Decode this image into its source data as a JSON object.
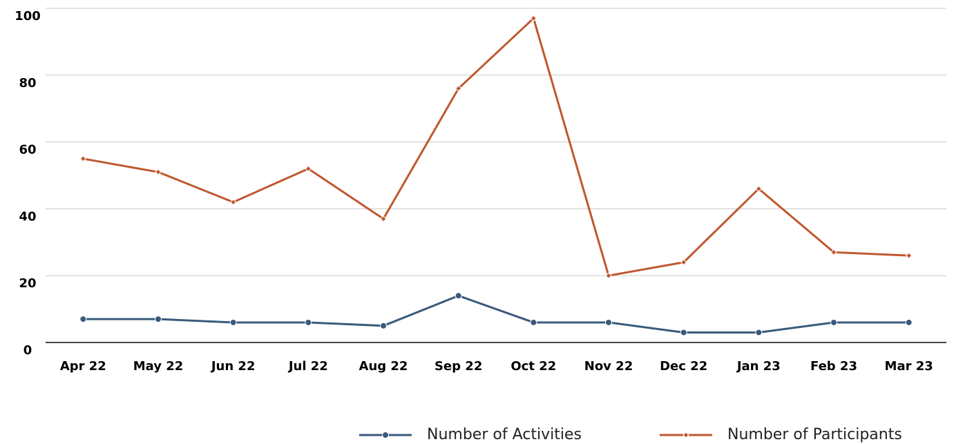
{
  "chart_data": {
    "type": "line",
    "categories": [
      "Apr 22",
      "May 22",
      "Jun 22",
      "Jul 22",
      "Aug 22",
      "Sep 22",
      "Oct 22",
      "Nov 22",
      "Dec 22",
      "Jan 23",
      "Feb 23",
      "Mar 23"
    ],
    "series": [
      {
        "name": "Number of Activities",
        "color": "#395a7b",
        "marker": "circle",
        "values": [
          7,
          7,
          6,
          6,
          5,
          14,
          6,
          6,
          3,
          3,
          6,
          6
        ]
      },
      {
        "name": "Number of Participants",
        "color": "#c0572f",
        "marker": "diamond",
        "values": [
          55,
          51,
          42,
          52,
          37,
          76,
          97,
          20,
          24,
          46,
          27,
          26
        ]
      }
    ],
    "ylim": [
      0,
      100
    ],
    "yticks": [
      0,
      20,
      40,
      60,
      80,
      100
    ],
    "grid": true,
    "legend": "bottom"
  }
}
